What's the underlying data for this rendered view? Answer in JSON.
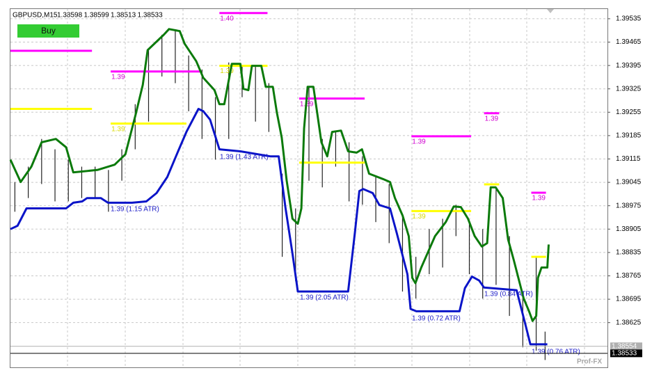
{
  "chart_data": {
    "type": "ohlc",
    "symbol": "GBPUSD,M15",
    "header_prices": [
      1.38598,
      1.38599,
      1.38513,
      1.38533
    ],
    "button": "Buy",
    "watermark": "Prof-FX",
    "grid": true,
    "xlim": [
      0,
      134
    ],
    "ylim": [
      1.38491,
      1.39564
    ],
    "yticks": [
      1.39535,
      1.39465,
      1.39395,
      1.39325,
      1.39255,
      1.39185,
      1.39115,
      1.39045,
      1.38975,
      1.38905,
      1.38835,
      1.38765,
      1.38695,
      1.38625
    ],
    "bar_color": "#222222",
    "bars": {
      "x": [
        1,
        4,
        7,
        10,
        13,
        16,
        19,
        22,
        25,
        28,
        31,
        34,
        37,
        40,
        43,
        46,
        49,
        52,
        55,
        58,
        61,
        64,
        67,
        70,
        73,
        76,
        79,
        82,
        85,
        88,
        91,
        94,
        97,
        100,
        103,
        106,
        109,
        112,
        115,
        118,
        120
      ],
      "high": [
        1.39046,
        1.39092,
        1.39175,
        1.39144,
        1.39113,
        1.39092,
        1.39092,
        1.39082,
        1.39144,
        1.39279,
        1.39446,
        1.39487,
        1.39498,
        1.39425,
        1.39383,
        1.393,
        1.39404,
        1.39394,
        1.39394,
        1.39342,
        1.39071,
        1.38967,
        1.39331,
        1.39175,
        1.39196,
        1.39165,
        1.39123,
        1.39061,
        1.3904,
        1.38946,
        1.38822,
        1.38905,
        1.38936,
        1.38978,
        1.38926,
        1.38905,
        1.3903,
        1.38884,
        1.38718,
        1.38822,
        1.38598
      ],
      "low": [
        1.38957,
        1.38998,
        1.3904,
        1.38988,
        1.38988,
        1.38998,
        1.38998,
        1.38957,
        1.3905,
        1.39144,
        1.39227,
        1.39362,
        1.39342,
        1.39258,
        1.39175,
        1.39113,
        1.39175,
        1.393,
        1.39227,
        1.39196,
        1.38822,
        1.38749,
        1.3905,
        1.3903,
        1.39092,
        1.38988,
        1.38978,
        1.38926,
        1.38863,
        1.38718,
        1.38697,
        1.3877,
        1.3879,
        1.38884,
        1.3877,
        1.38697,
        1.38738,
        1.38645,
        1.38551,
        1.38541,
        1.38513
      ]
    },
    "series": [
      {
        "color": "#0b7a0b",
        "x": [
          0,
          2.3,
          4.7,
          7.0,
          10.2,
          12.5,
          14.1,
          19.5,
          23.4,
          25.8,
          28.1,
          29.7,
          30.8,
          34.4,
          35.6,
          38.0,
          39.1,
          41.7,
          43.3,
          45.8,
          46.9,
          48.0,
          49.7,
          51.6,
          52.3,
          53.4,
          54.2,
          56.3,
          57.3,
          58.9,
          59.8,
          60.9,
          62.0,
          63.3,
          64.5,
          65.3,
          65.9,
          66.7,
          68.0,
          68.8,
          69.8,
          71.1,
          72.2,
          74.2,
          75.8,
          77.7,
          78.9,
          80.5,
          83.6,
          85.2,
          86.3,
          88.0,
          89.4,
          90.2,
          90.9,
          92.2,
          95.3,
          97.7,
          99.5,
          101.1,
          102.7,
          104.2,
          105.8,
          107.0,
          107.8,
          108.9,
          110.5,
          111.7,
          113.0,
          115.2,
          116.4,
          117.2,
          118.0,
          118.4,
          119.2,
          120.5,
          120.8
        ],
        "values": [
          1.39113,
          1.39046,
          1.39092,
          1.39165,
          1.39175,
          1.3915,
          1.39075,
          1.39082,
          1.39098,
          1.39129,
          1.39248,
          1.39337,
          1.39441,
          1.39487,
          1.39504,
          1.39498,
          1.3946,
          1.39408,
          1.39358,
          1.39321,
          1.39279,
          1.39279,
          1.394,
          1.394,
          1.39325,
          1.39321,
          1.39394,
          1.39394,
          1.39331,
          1.39331,
          1.39254,
          1.39179,
          1.3905,
          1.38936,
          1.38921,
          1.38967,
          1.39206,
          1.39331,
          1.39331,
          1.39258,
          1.39165,
          1.39123,
          1.39196,
          1.392,
          1.39138,
          1.39134,
          1.39144,
          1.39071,
          1.39055,
          1.39046,
          1.38998,
          1.38946,
          1.38884,
          1.38759,
          1.38743,
          1.3879,
          1.38884,
          1.38926,
          1.38973,
          1.38971,
          1.38936,
          1.38884,
          1.38853,
          1.38863,
          1.3903,
          1.3903,
          1.38998,
          1.38874,
          1.38811,
          1.38697,
          1.38659,
          1.3863,
          1.38645,
          1.38759,
          1.3879,
          1.3879,
          1.38859
        ]
      },
      {
        "color": "#0a14c8",
        "x": [
          0,
          1.6,
          3.6,
          12.5,
          14.1,
          16.1,
          17.2,
          20.3,
          21.9,
          27.3,
          30.5,
          32.8,
          35.2,
          37.5,
          39.5,
          42.2,
          43.3,
          44.8,
          46.9,
          51.6,
          58.3,
          60.2,
          61.7,
          63.3,
          64.5,
          75.8,
          77.3,
          78.3,
          79.2,
          81.3,
          82.8,
          85.2,
          86.7,
          89.1,
          89.8,
          91.1,
          100.8,
          102.0,
          103.6,
          105.2,
          106.3,
          113.6,
          115.6,
          116.7,
          120.5
        ],
        "values": [
          1.38905,
          1.38915,
          1.38967,
          1.38967,
          1.38984,
          1.38988,
          1.38998,
          1.38998,
          1.38984,
          1.38984,
          1.38988,
          1.39013,
          1.39061,
          1.39134,
          1.39196,
          1.39265,
          1.39258,
          1.39233,
          1.39144,
          1.39138,
          1.39123,
          1.39123,
          1.38971,
          1.38832,
          1.38718,
          1.38718,
          1.38894,
          1.39019,
          1.39025,
          1.39013,
          1.38977,
          1.38967,
          1.38894,
          1.3877,
          1.38666,
          1.38659,
          1.38659,
          1.38728,
          1.38763,
          1.38751,
          1.3873,
          1.38722,
          1.38618,
          1.3856,
          1.3856
        ]
      }
    ],
    "levels": [
      {
        "x": [
          0,
          18.3
        ],
        "value": 1.39439,
        "color": "#ff00ff"
      },
      {
        "x": [
          46.9,
          57.7
        ],
        "value": 1.39552,
        "color": "#ff00ff",
        "label": "1.40"
      },
      {
        "x": [
          22.5,
          42.5
        ],
        "value": 1.39377,
        "color": "#ff00ff",
        "label": "1.39"
      },
      {
        "x": [
          0,
          18.3
        ],
        "value": 1.39265,
        "color": "#ffff00"
      },
      {
        "x": [
          22.5,
          39.5
        ],
        "value": 1.39221,
        "color": "#ffff00",
        "label": "1.39"
      },
      {
        "x": [
          46.9,
          57.7
        ],
        "value": 1.39394,
        "color": "#ffff00",
        "label": "1.39"
      },
      {
        "x": [
          64.8,
          79.5
        ],
        "value": 1.39296,
        "color": "#ff00ff",
        "label": "1.39"
      },
      {
        "x": [
          64.8,
          79.5
        ],
        "value": 1.39104,
        "color": "#ffff00"
      },
      {
        "x": [
          90,
          103.4
        ],
        "value": 1.39183,
        "color": "#ff00ff",
        "label": "1.39"
      },
      {
        "x": [
          90,
          103.4
        ],
        "value": 1.38959,
        "color": "#ffff00",
        "label": "1.39"
      },
      {
        "x": [
          106.3,
          109.7
        ],
        "value": 1.39252,
        "color": "#ff00ff",
        "label": "1.39"
      },
      {
        "x": [
          106.3,
          109.7
        ],
        "value": 1.39039,
        "color": "#ffff00"
      },
      {
        "x": [
          116.9,
          120.2
        ],
        "value": 1.39014,
        "color": "#ff00ff",
        "label": "1.39"
      },
      {
        "x": [
          116.9,
          120.2
        ],
        "value": 1.38822,
        "color": "#ffff00"
      }
    ],
    "annotations": [
      "1.39 (1.15 ATR)",
      "1.39 (1.43 ATR)",
      "1.39 (2.05 ATR)",
      "1.39 (0.72 ATR)",
      "1.39 (0.84 ATR)",
      "1.39 (0.76 ATR)"
    ],
    "price_tags": [
      {
        "value": 1.38554,
        "color": "#b0b0b0"
      },
      {
        "value": 1.38533,
        "color": "#000000"
      }
    ]
  }
}
